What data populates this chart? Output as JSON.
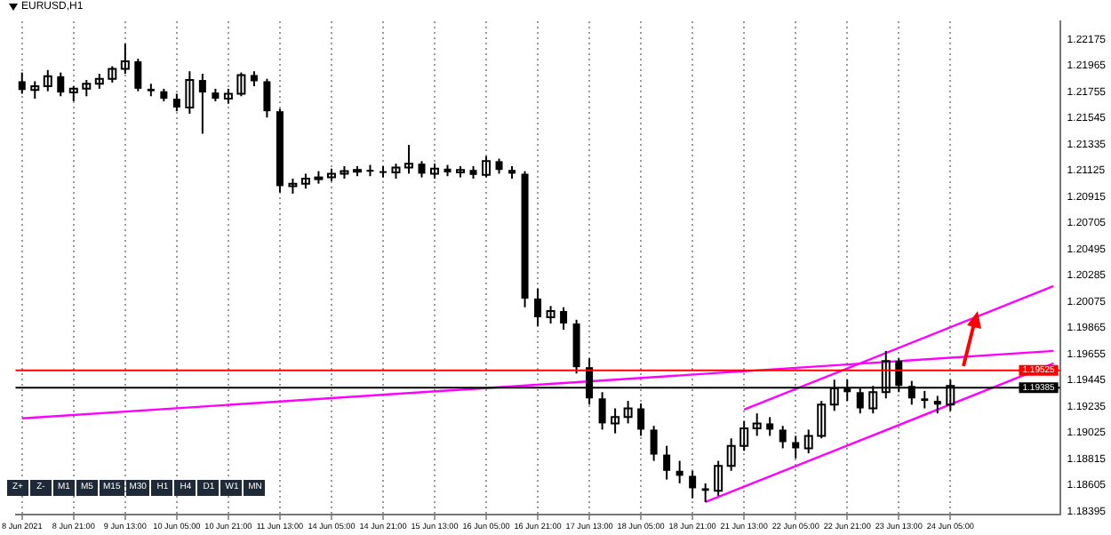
{
  "chart_data": {
    "type": "candlestick",
    "title": "EURUSD,H1",
    "annotations": [
      "Z+",
      "Z-",
      "M1",
      "M5",
      "M15",
      "M30",
      "H1",
      "H4",
      "D1",
      "W1",
      "MN"
    ],
    "categories": [
      "8 Jun 2021",
      null,
      null,
      null,
      "8 Jun 21:00",
      null,
      null,
      null,
      "9 Jun 13:00",
      null,
      null,
      null,
      "10 Jun 05:00",
      null,
      null,
      null,
      "10 Jun 21:00",
      null,
      null,
      null,
      "11 Jun 13:00",
      null,
      null,
      null,
      "14 Jun 05:00",
      null,
      null,
      null,
      "14 Jun 21:00",
      null,
      null,
      null,
      "15 Jun 13:00",
      null,
      null,
      null,
      "16 Jun 05:00",
      null,
      null,
      null,
      "16 Jun 21:00",
      null,
      null,
      null,
      "17 Jun 13:00",
      null,
      null,
      null,
      "18 Jun 05:00",
      null,
      null,
      null,
      "18 Jun 21:00",
      null,
      null,
      null,
      "21 Jun 13:00",
      null,
      null,
      null,
      "22 Jun 05:00",
      null,
      null,
      null,
      "22 Jun 21:00",
      null,
      null,
      null,
      "23 Jun 13:00",
      null,
      null,
      null,
      "24 Jun 05:00",
      null,
      null,
      null,
      null,
      null,
      null,
      null,
      null
    ],
    "color": "#000000",
    "ohlc": [
      [
        1.2184,
        1.2191,
        1.2174,
        1.2177
      ],
      [
        1.2177,
        1.2184,
        1.217,
        1.218
      ],
      [
        1.218,
        1.2193,
        1.2176,
        1.2188
      ],
      [
        1.2188,
        1.2191,
        1.2172,
        1.2175
      ],
      [
        1.2175,
        1.218,
        1.2168,
        1.2178
      ],
      [
        1.2178,
        1.2185,
        1.2172,
        1.2182
      ],
      [
        1.2182,
        1.219,
        1.2178,
        1.2186
      ],
      [
        1.2186,
        1.2196,
        1.2183,
        1.2194
      ],
      [
        1.2194,
        1.2214,
        1.219,
        1.22
      ],
      [
        1.22,
        1.2202,
        1.2176,
        1.2178
      ],
      [
        1.2178,
        1.2182,
        1.2172,
        1.2176
      ],
      [
        1.2176,
        1.2178,
        1.2168,
        1.217
      ],
      [
        1.217,
        1.2174,
        1.216,
        1.2163
      ],
      [
        1.2163,
        1.2192,
        1.2158,
        1.2185
      ],
      [
        1.2185,
        1.219,
        1.2142,
        1.2175
      ],
      [
        1.2175,
        1.2178,
        1.2168,
        1.217
      ],
      [
        1.217,
        1.2178,
        1.2166,
        1.2174
      ],
      [
        1.2174,
        1.2191,
        1.2172,
        1.2189
      ],
      [
        1.2189,
        1.2192,
        1.218,
        1.2184
      ],
      [
        1.2184,
        1.2186,
        1.2155,
        1.216
      ],
      [
        1.216,
        1.2162,
        1.2095,
        1.21
      ],
      [
        1.21,
        1.2106,
        1.2094,
        1.2102
      ],
      [
        1.2102,
        1.211,
        1.2098,
        1.2106
      ],
      [
        1.2106,
        1.2112,
        1.2102,
        1.2107
      ],
      [
        1.2107,
        1.2114,
        1.2104,
        1.211
      ],
      [
        1.211,
        1.2116,
        1.2106,
        1.2112
      ],
      [
        1.2112,
        1.2116,
        1.2108,
        1.2113
      ],
      [
        1.2113,
        1.2117,
        1.2108,
        1.2112
      ],
      [
        1.2112,
        1.2116,
        1.2107,
        1.2111
      ],
      [
        1.2111,
        1.2118,
        1.2106,
        1.2115
      ],
      [
        1.2115,
        1.2133,
        1.211,
        1.2118
      ],
      [
        1.2118,
        1.212,
        1.2107,
        1.211
      ],
      [
        1.211,
        1.2118,
        1.2106,
        1.2114
      ],
      [
        1.2114,
        1.2117,
        1.2108,
        1.2111
      ],
      [
        1.2111,
        1.2116,
        1.2107,
        1.2113
      ],
      [
        1.2113,
        1.2116,
        1.2106,
        1.2109
      ],
      [
        1.2109,
        1.2124,
        1.2107,
        1.212
      ],
      [
        1.212,
        1.2122,
        1.211,
        1.2113
      ],
      [
        1.2113,
        1.2116,
        1.2106,
        1.211
      ],
      [
        1.211,
        1.2112,
        1.2003,
        1.201
      ],
      [
        1.201,
        1.2018,
        1.1988,
        1.1995
      ],
      [
        1.1995,
        1.2004,
        1.199,
        1.2
      ],
      [
        1.2,
        1.2003,
        1.1985,
        1.199
      ],
      [
        1.199,
        1.1993,
        1.195,
        1.1955
      ],
      [
        1.1955,
        1.1962,
        1.1925,
        1.193
      ],
      [
        1.193,
        1.1935,
        1.1905,
        1.191
      ],
      [
        1.191,
        1.1922,
        1.1902,
        1.1915
      ],
      [
        1.1915,
        1.1928,
        1.191,
        1.1922
      ],
      [
        1.1922,
        1.1926,
        1.19,
        1.1905
      ],
      [
        1.1905,
        1.1908,
        1.188,
        1.1885
      ],
      [
        1.1885,
        1.1892,
        1.1865,
        1.1872
      ],
      [
        1.1872,
        1.188,
        1.1862,
        1.1868
      ],
      [
        1.1868,
        1.1872,
        1.185,
        1.1858
      ],
      [
        1.1858,
        1.1862,
        1.1847,
        1.1856
      ],
      [
        1.1856,
        1.188,
        1.1852,
        1.1876
      ],
      [
        1.1876,
        1.1898,
        1.1872,
        1.1892
      ],
      [
        1.1892,
        1.1912,
        1.1888,
        1.1906
      ],
      [
        1.1906,
        1.1918,
        1.19,
        1.191
      ],
      [
        1.191,
        1.1915,
        1.19,
        1.1905
      ],
      [
        1.1905,
        1.1908,
        1.189,
        1.1895
      ],
      [
        1.1895,
        1.19,
        1.1882,
        1.189
      ],
      [
        1.189,
        1.1905,
        1.1886,
        1.19
      ],
      [
        1.19,
        1.1928,
        1.1898,
        1.1925
      ],
      [
        1.1925,
        1.1945,
        1.192,
        1.1938
      ],
      [
        1.1938,
        1.1945,
        1.1928,
        1.1935
      ],
      [
        1.1935,
        1.1938,
        1.1918,
        1.1922
      ],
      [
        1.1922,
        1.194,
        1.1918,
        1.1935
      ],
      [
        1.1935,
        1.1968,
        1.193,
        1.196
      ],
      [
        1.196,
        1.1962,
        1.1935,
        1.194
      ],
      [
        1.194,
        1.1944,
        1.1925,
        1.193
      ],
      [
        1.193,
        1.1936,
        1.1922,
        1.1928
      ],
      [
        1.1928,
        1.1932,
        1.1918,
        1.1925
      ],
      [
        1.1925,
        1.1945,
        1.192,
        1.194
      ],
      null,
      null,
      null,
      null,
      null,
      null,
      null,
      null
    ],
    "series": [
      {
        "type": "line",
        "color": "#ff00ff",
        "values": [
          1.1914,
          null,
          null,
          null,
          null,
          null,
          null,
          null,
          null,
          null,
          null,
          null,
          null,
          null,
          null,
          null,
          null,
          null,
          null,
          null,
          null,
          null,
          null,
          null,
          null,
          null,
          null,
          null,
          null,
          null,
          null,
          null,
          null,
          null,
          null,
          null,
          null,
          null,
          null,
          null,
          null,
          null,
          null,
          null,
          null,
          null,
          null,
          null,
          null,
          null,
          null,
          null,
          null,
          null,
          null,
          null,
          null,
          null,
          null,
          null,
          null,
          null,
          null,
          null,
          null,
          null,
          null,
          null,
          null,
          null,
          null,
          null,
          null,
          null,
          null,
          null,
          null,
          null,
          null,
          null,
          1.1968
        ]
      },
      {
        "type": "line",
        "color": "#ff00ff",
        "values": [
          null,
          null,
          null,
          null,
          null,
          null,
          null,
          null,
          null,
          null,
          null,
          null,
          null,
          null,
          null,
          null,
          null,
          null,
          null,
          null,
          null,
          null,
          null,
          null,
          null,
          null,
          null,
          null,
          null,
          null,
          null,
          null,
          null,
          null,
          null,
          null,
          null,
          null,
          null,
          null,
          null,
          null,
          null,
          null,
          null,
          null,
          null,
          null,
          null,
          null,
          null,
          null,
          null,
          1.1847,
          null,
          null,
          null,
          null,
          null,
          null,
          null,
          null,
          null,
          null,
          null,
          null,
          null,
          null,
          null,
          null,
          null,
          null,
          null,
          null,
          null,
          null,
          null,
          null,
          null,
          null,
          1.1958
        ]
      },
      {
        "type": "line",
        "color": "#ff00ff",
        "values": [
          null,
          null,
          null,
          null,
          null,
          null,
          null,
          null,
          null,
          null,
          null,
          null,
          null,
          null,
          null,
          null,
          null,
          null,
          null,
          null,
          null,
          null,
          null,
          null,
          null,
          null,
          null,
          null,
          null,
          null,
          null,
          null,
          null,
          null,
          null,
          null,
          null,
          null,
          null,
          null,
          null,
          null,
          null,
          null,
          null,
          null,
          null,
          null,
          null,
          null,
          null,
          null,
          null,
          null,
          null,
          null,
          1.1921,
          null,
          null,
          null,
          null,
          null,
          null,
          null,
          null,
          null,
          null,
          null,
          null,
          null,
          null,
          null,
          null,
          null,
          null,
          null,
          null,
          null,
          null,
          null,
          1.202
        ]
      }
    ],
    "ref_lines": [
      {
        "axis": "y",
        "value": 1.19525,
        "label": "1.19525",
        "color": "#ff0000"
      },
      {
        "axis": "y",
        "value": 1.19385,
        "label": "1.19385",
        "color": "#000000"
      }
    ],
    "ylim": [
      1.1837,
      1.2232
    ],
    "yticks": [
      1.22175,
      1.21965,
      1.21755,
      1.21545,
      1.21335,
      1.21125,
      1.20915,
      1.20705,
      1.20495,
      1.20285,
      1.20075,
      1.19865,
      1.19655,
      1.19445,
      1.19235,
      1.19025,
      1.18815,
      1.18605,
      1.18395
    ],
    "grid": "x",
    "legend": false
  }
}
